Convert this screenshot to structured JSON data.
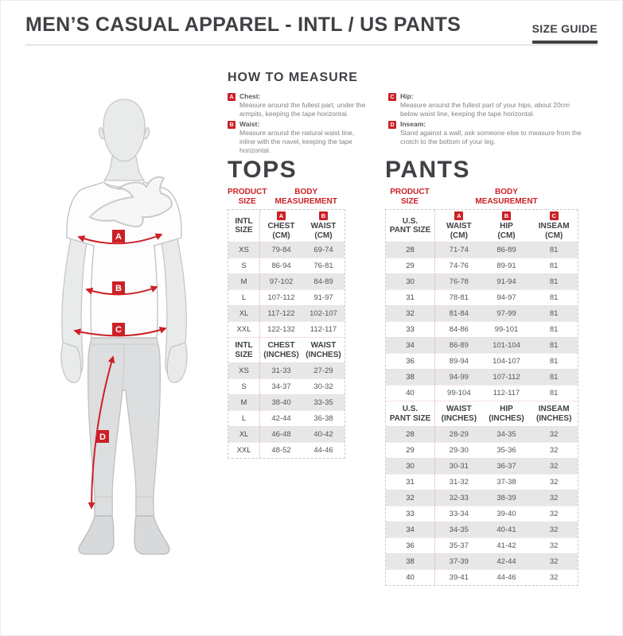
{
  "colors": {
    "accent_red": "#cc2027",
    "text_dark": "#3f4145",
    "stripe": "#e7e7e7"
  },
  "header": {
    "title": "MEN’S CASUAL APPAREL - INTL / US PANTS",
    "size_guide": "SIZE GUIDE"
  },
  "how_to_measure": {
    "title": "HOW TO MEASURE",
    "items": [
      {
        "badge": "A",
        "label": "Chest:",
        "text": "Measure around the fullest part, under the armpits, keeping the tape horizontal."
      },
      {
        "badge": "B",
        "label": "Waist:",
        "text": "Measure around the natural waist line, inline with the navel, keeping the tape horizontal."
      },
      {
        "badge": "C",
        "label": "Hip:",
        "text": "Measure around the fullest part of your hips, about 20cm below waist line, keeping the tape horizontal."
      },
      {
        "badge": "D",
        "label": "Inseam:",
        "text": "Stand against a wall, ask someone else to measure from the crotch to the bottom of your leg."
      }
    ]
  },
  "figure": {
    "measure_labels": [
      "A",
      "B",
      "C",
      "D"
    ]
  },
  "tops": {
    "title": "TOPS",
    "product_size_head": "PRODUCT\nSIZE",
    "body_measurement_head": "BODY\nMEASUREMENT",
    "cm": {
      "size_head": "INTL\nSIZE",
      "columns": [
        {
          "badge": "A",
          "label": "CHEST\n(CM)"
        },
        {
          "badge": "B",
          "label": "WAIST\n(CM)"
        }
      ],
      "rows": [
        [
          "XS",
          "79-84",
          "69-74"
        ],
        [
          "S",
          "86-94",
          "76-81"
        ],
        [
          "M",
          "97-102",
          "84-89"
        ],
        [
          "L",
          "107-112",
          "91-97"
        ],
        [
          "XL",
          "117-122",
          "102-107"
        ],
        [
          "XXL",
          "122-132",
          "112-117"
        ]
      ]
    },
    "inches": {
      "size_head": "INTL\nSIZE",
      "columns": [
        {
          "label": "CHEST\n(INCHES)"
        },
        {
          "label": "WAIST\n(INCHES)"
        }
      ],
      "rows": [
        [
          "XS",
          "31-33",
          "27-29"
        ],
        [
          "S",
          "34-37",
          "30-32"
        ],
        [
          "M",
          "38-40",
          "33-35"
        ],
        [
          "L",
          "42-44",
          "36-38"
        ],
        [
          "XL",
          "46-48",
          "40-42"
        ],
        [
          "XXL",
          "48-52",
          "44-46"
        ]
      ]
    }
  },
  "pants": {
    "title": "PANTS",
    "product_size_head": "PRODUCT\nSIZE",
    "body_measurement_head": "BODY\nMEASUREMENT",
    "cm": {
      "size_head": "U.S.\nPANT SIZE",
      "columns": [
        {
          "badge": "A",
          "label": "WAIST\n(CM)"
        },
        {
          "badge": "B",
          "label": "HIP\n(CM)"
        },
        {
          "badge": "C",
          "label": "INSEAM\n(CM)"
        }
      ],
      "rows": [
        [
          "28",
          "71-74",
          "86-89",
          "81"
        ],
        [
          "29",
          "74-76",
          "89-91",
          "81"
        ],
        [
          "30",
          "76-78",
          "91-94",
          "81"
        ],
        [
          "31",
          "78-81",
          "94-97",
          "81"
        ],
        [
          "32",
          "81-84",
          "97-99",
          "81"
        ],
        [
          "33",
          "84-86",
          "99-101",
          "81"
        ],
        [
          "34",
          "86-89",
          "101-104",
          "81"
        ],
        [
          "36",
          "89-94",
          "104-107",
          "81"
        ],
        [
          "38",
          "94-99",
          "107-112",
          "81"
        ],
        [
          "40",
          "99-104",
          "112-117",
          "81"
        ]
      ]
    },
    "inches": {
      "size_head": "U.S.\nPANT SIZE",
      "columns": [
        {
          "label": "WAIST\n(INCHES)"
        },
        {
          "label": "HIP\n(INCHES)"
        },
        {
          "label": "INSEAM\n(INCHES)"
        }
      ],
      "rows": [
        [
          "28",
          "28-29",
          "34-35",
          "32"
        ],
        [
          "29",
          "29-30",
          "35-36",
          "32"
        ],
        [
          "30",
          "30-31",
          "36-37",
          "32"
        ],
        [
          "31",
          "31-32",
          "37-38",
          "32"
        ],
        [
          "32",
          "32-33",
          "38-39",
          "32"
        ],
        [
          "33",
          "33-34",
          "39-40",
          "32"
        ],
        [
          "34",
          "34-35",
          "40-41",
          "32"
        ],
        [
          "36",
          "35-37",
          "41-42",
          "32"
        ],
        [
          "38",
          "37-39",
          "42-44",
          "32"
        ],
        [
          "40",
          "39-41",
          "44-46",
          "32"
        ]
      ]
    }
  }
}
